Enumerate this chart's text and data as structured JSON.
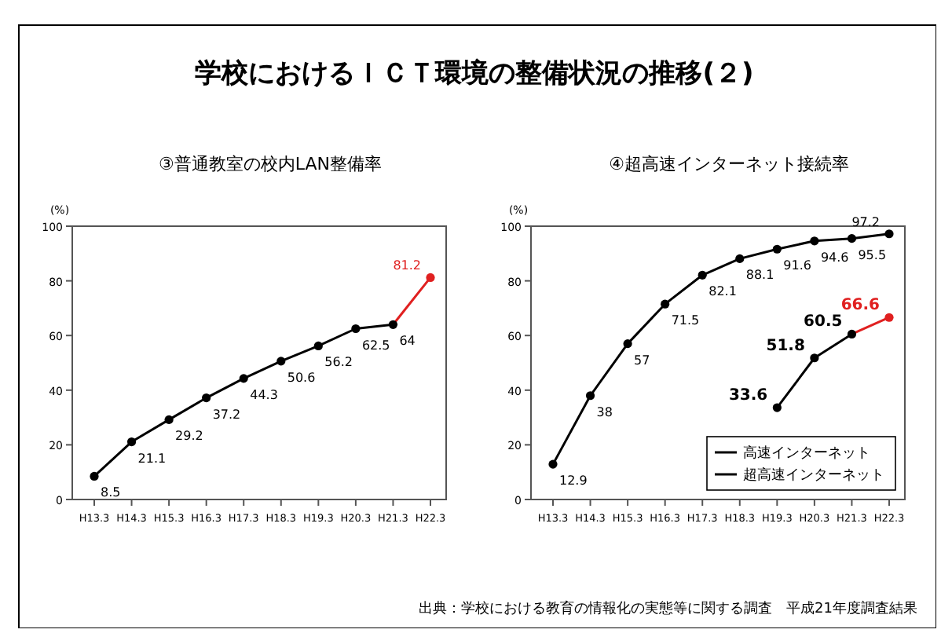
{
  "chart_data": [
    {
      "type": "line",
      "title": "学校におけるＩＣＴ環境の整備状況の推移(２)",
      "subtitle": "③普通教室の校内LAN整備率",
      "ylabel": "(%)",
      "categories": [
        "H13.3",
        "H14.3",
        "H15.3",
        "H16.3",
        "H17.3",
        "H18.3",
        "H19.3",
        "H20.3",
        "H21.3",
        "H22.3"
      ],
      "series": [
        {
          "colors": [
            "#000000",
            "#000000",
            "#000000",
            "#000000",
            "#000000",
            "#000000",
            "#000000",
            "#000000",
            "#000000",
            "#e02020"
          ],
          "values": [
            8.5,
            21.1,
            29.2,
            37.2,
            44.3,
            50.6,
            56.2,
            62.5,
            64.0,
            81.2
          ]
        }
      ],
      "ylim": [
        0,
        100
      ],
      "yticks": [
        0,
        20,
        40,
        60,
        80,
        100
      ],
      "data_labels": true,
      "marker": "circle",
      "legend": false,
      "grid": false
    },
    {
      "type": "line",
      "subtitle": "④超高速インターネット接続率",
      "ylabel": "(%)",
      "categories": [
        "H13.3",
        "H14.3",
        "H15.3",
        "H16.3",
        "H17.3",
        "H18.3",
        "H19.3",
        "H20.3",
        "H21.3",
        "H22.3"
      ],
      "series": [
        {
          "name": "高速インターネット",
          "color": "#000000",
          "values": [
            12.9,
            38.0,
            57.0,
            71.5,
            82.1,
            88.1,
            91.6,
            94.6,
            95.5,
            97.2
          ]
        },
        {
          "name": "超高速インターネット",
          "color": "#000000",
          "colors": [
            null,
            null,
            null,
            null,
            null,
            null,
            "#000000",
            "#000000",
            "#000000",
            "#e02020"
          ],
          "values": [
            null,
            null,
            null,
            null,
            null,
            null,
            33.6,
            51.8,
            60.5,
            66.6
          ]
        }
      ],
      "ylim": [
        0,
        100
      ],
      "yticks": [
        0,
        20,
        40,
        60,
        80,
        100
      ],
      "data_labels": true,
      "marker": "circle",
      "legend": "bottom right",
      "grid": false,
      "annotations": [
        "出典：学校における教育の情報化の実態等に関する調査　平成21年度調査結果"
      ]
    }
  ]
}
